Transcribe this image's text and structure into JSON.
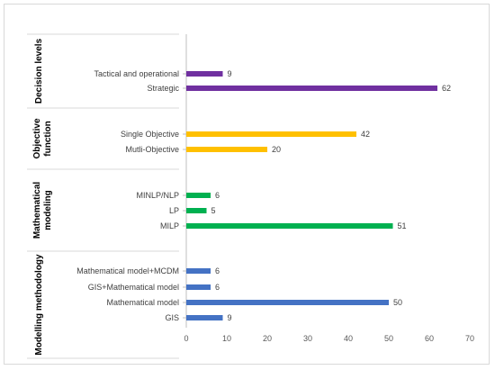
{
  "chart_data": {
    "type": "bar",
    "orientation": "horizontal",
    "title": "",
    "xlabel": "",
    "ylabel": "",
    "xlim": [
      0,
      70
    ],
    "x_ticks": [
      "0",
      "10",
      "20",
      "30",
      "40",
      "50",
      "60",
      "70"
    ],
    "grid": false,
    "legend": "none",
    "groups": [
      {
        "label": "Decision levels",
        "color": "#7030a0",
        "categories": [
          "Tactical and operational",
          "Strategic"
        ],
        "values": [
          9,
          62
        ]
      },
      {
        "label": "Objective function",
        "color": "#ffc000",
        "categories": [
          "Single Objective",
          "Mutli-Objective"
        ],
        "values": [
          42,
          20
        ]
      },
      {
        "label": "Mathematical modeling",
        "color": "#00b050",
        "categories": [
          "MINLP/NLP",
          "LP",
          "MILP"
        ],
        "values": [
          6,
          5,
          51
        ]
      },
      {
        "label": "Modelling methodology",
        "color": "#4472c4",
        "categories": [
          "Mathematical model+MCDM",
          "GIS+Mathematical model",
          "Mathematical model",
          "GIS"
        ],
        "values": [
          6,
          6,
          50,
          9
        ]
      }
    ]
  }
}
